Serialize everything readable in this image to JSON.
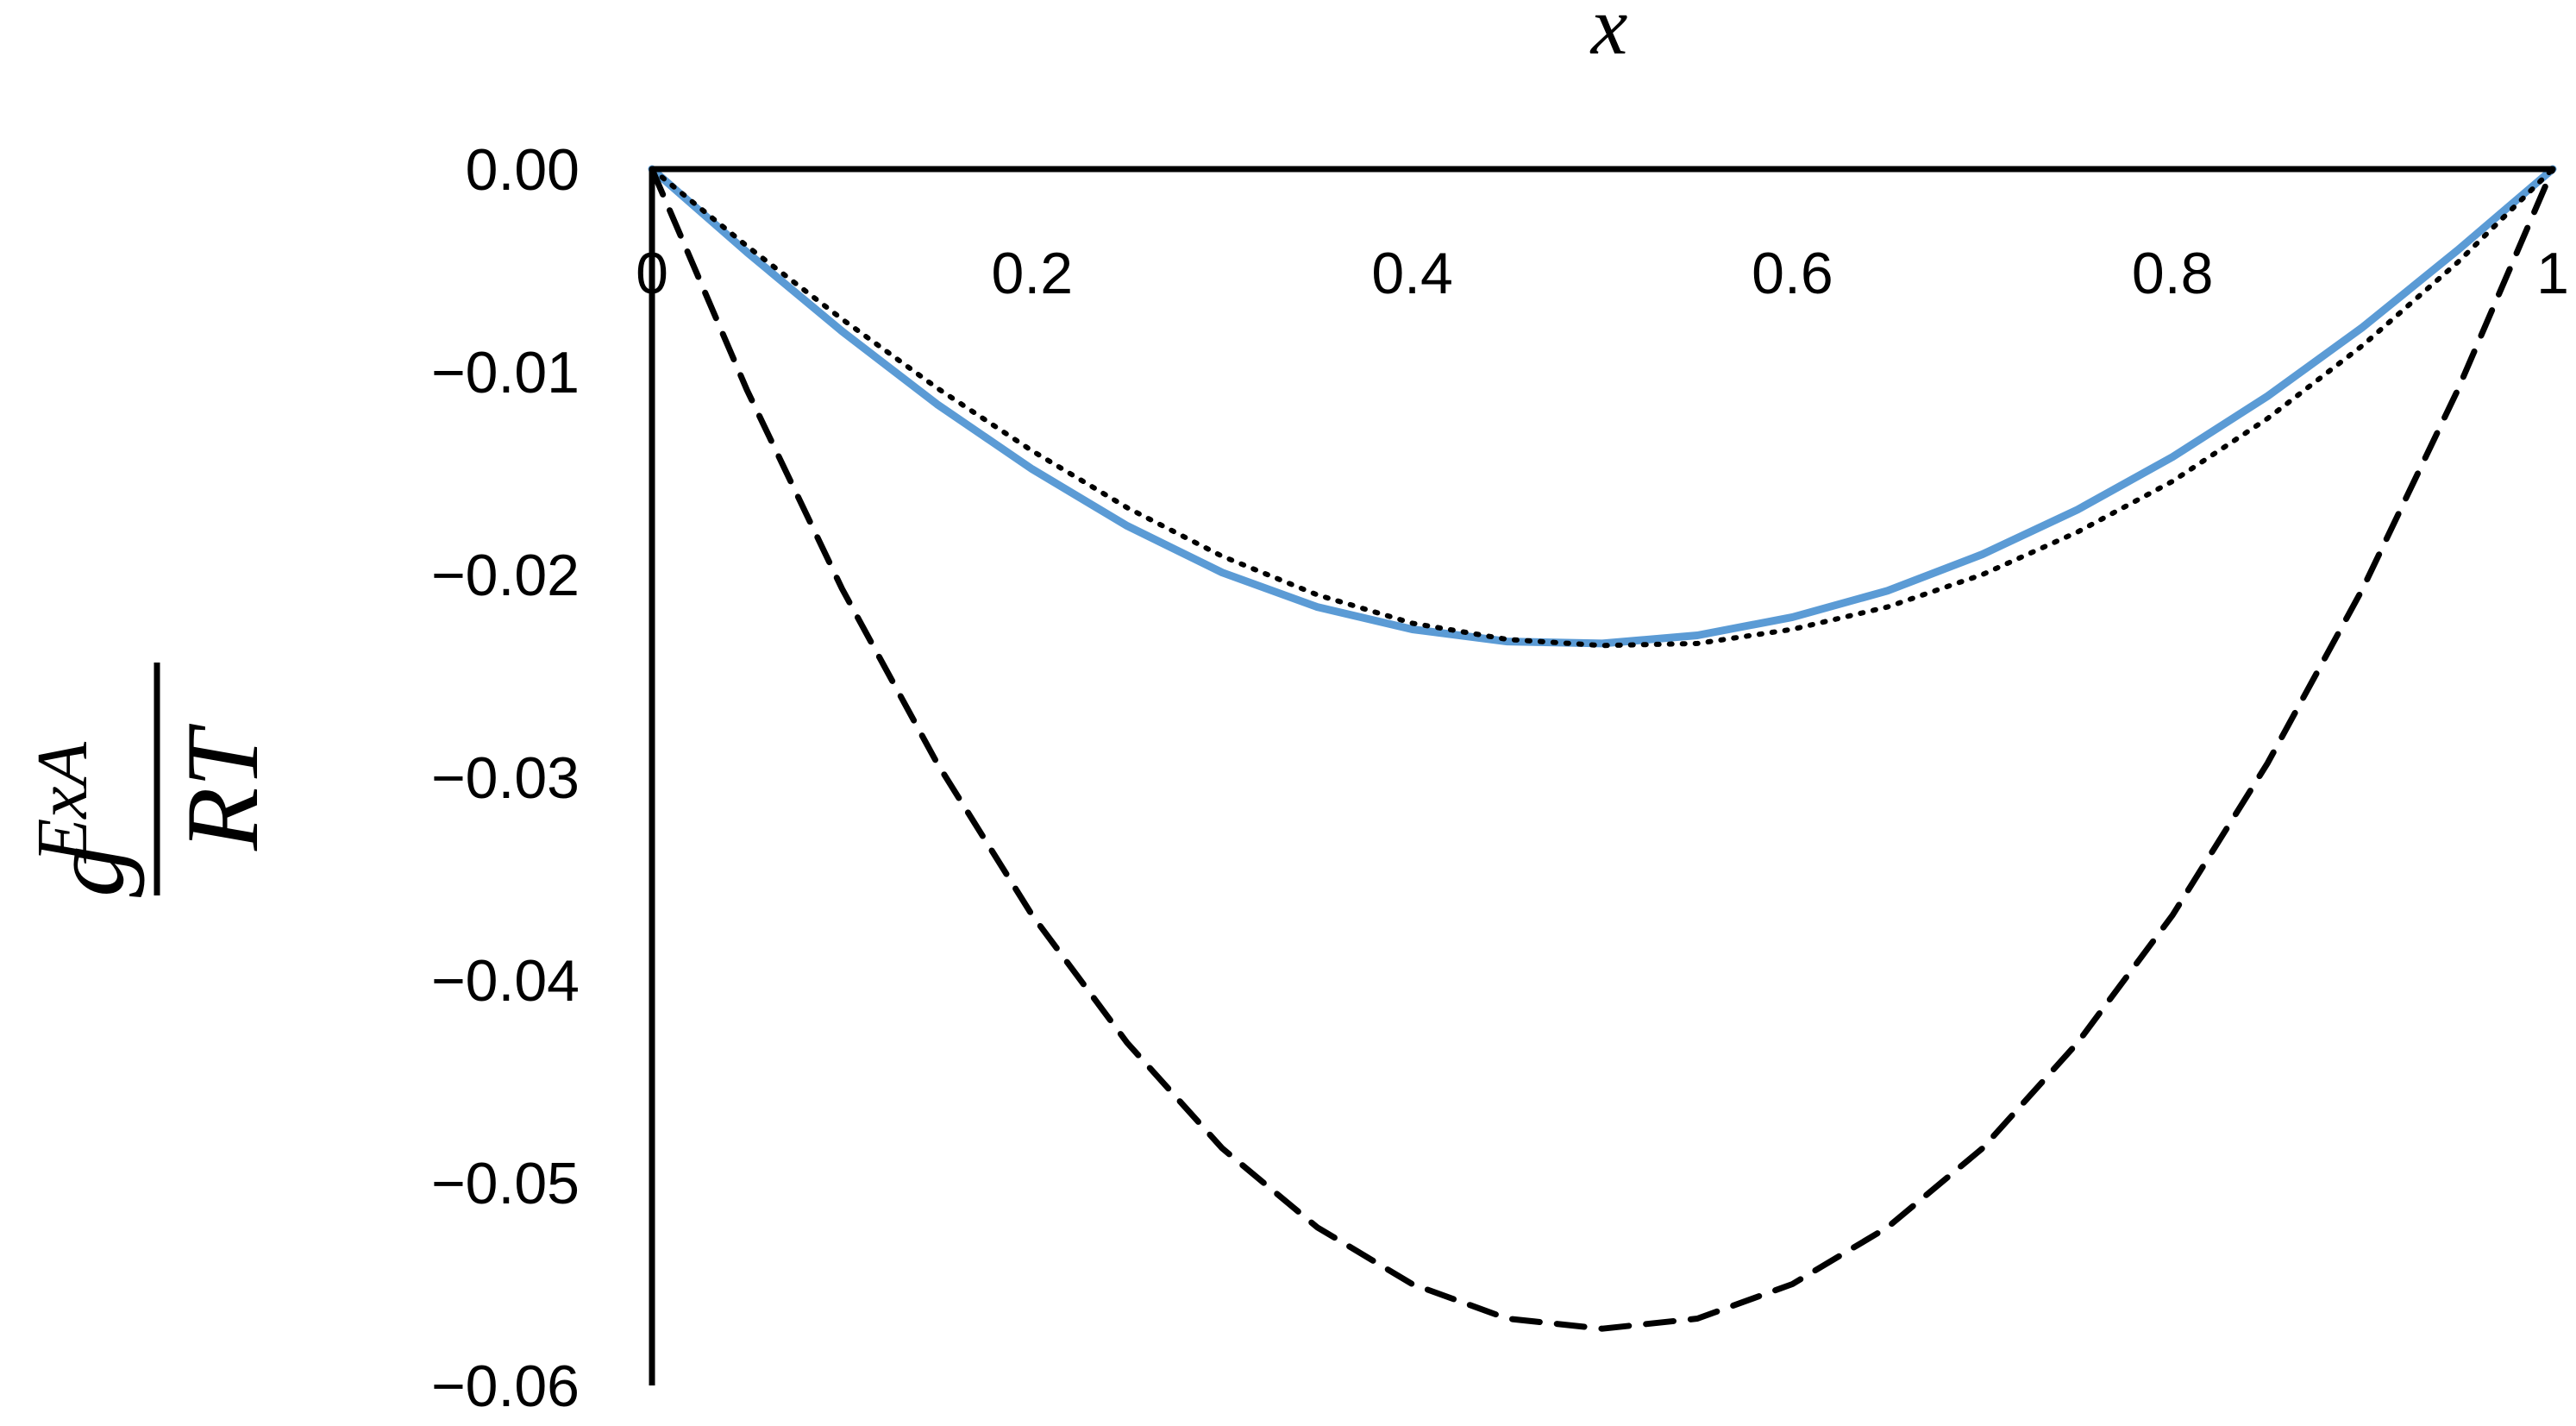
{
  "chart_data": {
    "type": "line",
    "title": "",
    "xlabel": "x",
    "ylabel": {
      "numerator": "g",
      "superscript": "ExA",
      "denominator": "RT"
    },
    "xlim": [
      0,
      1
    ],
    "ylim": [
      -0.06,
      0.0
    ],
    "grid": false,
    "legend": "none",
    "x_ticks": [
      {
        "value": 0,
        "label": "0"
      },
      {
        "value": 0.2,
        "label": "0.2"
      },
      {
        "value": 0.4,
        "label": "0.4"
      },
      {
        "value": 0.6,
        "label": "0.6"
      },
      {
        "value": 0.8,
        "label": "0.8"
      },
      {
        "value": 1,
        "label": "1"
      }
    ],
    "y_ticks": [
      {
        "value": 0.0,
        "label": "0.00"
      },
      {
        "value": -0.01,
        "label": "−0.01"
      },
      {
        "value": -0.02,
        "label": "−0.02"
      },
      {
        "value": -0.03,
        "label": "−0.03"
      },
      {
        "value": -0.04,
        "label": "−0.04"
      },
      {
        "value": -0.05,
        "label": "−0.05"
      },
      {
        "value": -0.06,
        "label": "−0.06"
      }
    ],
    "x": [
      0,
      0.05,
      0.1,
      0.15,
      0.2,
      0.25,
      0.3,
      0.35,
      0.4,
      0.45,
      0.5,
      0.55,
      0.6,
      0.65,
      0.7,
      0.75,
      0.8,
      0.85,
      0.9,
      0.95,
      1
    ],
    "series": [
      {
        "style": "solid",
        "color": "#5b9bd5",
        "values": [
          0,
          -0.0041,
          -0.008,
          -0.0116,
          -0.0148,
          -0.0176,
          -0.0199,
          -0.0216,
          -0.0227,
          -0.0233,
          -0.0234,
          -0.023,
          -0.0221,
          -0.0208,
          -0.019,
          -0.0168,
          -0.0142,
          -0.0112,
          -0.0078,
          -0.004,
          0
        ]
      },
      {
        "style": "dotted",
        "color": "#000000",
        "values": [
          0,
          -0.0038,
          -0.0074,
          -0.0108,
          -0.0139,
          -0.0167,
          -0.0191,
          -0.021,
          -0.0224,
          -0.0232,
          -0.0235,
          -0.0234,
          -0.0227,
          -0.0216,
          -0.02,
          -0.0179,
          -0.0154,
          -0.0123,
          -0.0087,
          -0.0046,
          0
        ]
      },
      {
        "style": "dashed",
        "color": "#000000",
        "values": [
          0,
          -0.0109,
          -0.0207,
          -0.0293,
          -0.0368,
          -0.0431,
          -0.0483,
          -0.0522,
          -0.055,
          -0.0567,
          -0.0572,
          -0.0567,
          -0.055,
          -0.0522,
          -0.0483,
          -0.0431,
          -0.0368,
          -0.0293,
          -0.0207,
          -0.0109,
          0
        ]
      }
    ]
  }
}
